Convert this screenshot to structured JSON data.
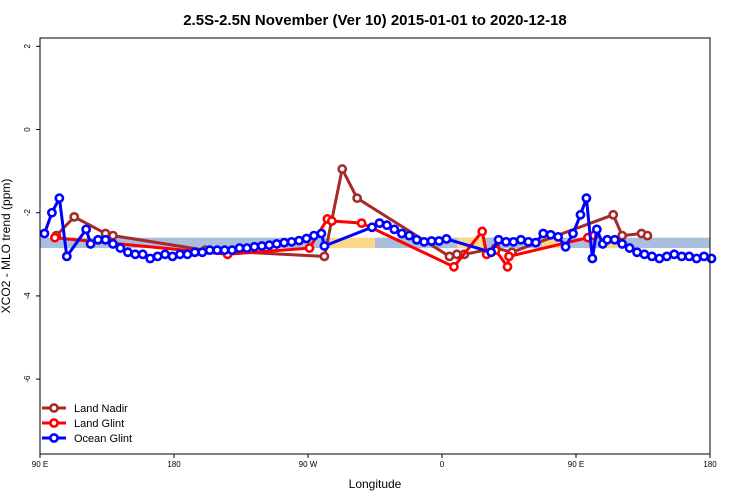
{
  "chart_data": {
    "type": "line",
    "title": "2.5S-2.5N November (Ver 10)   2015-01-01 to 2020-12-18",
    "xlabel": "Longitude",
    "ylabel": "XCO2 - MLO trend (ppm)",
    "xlim": [
      0,
      450
    ],
    "ylim": [
      -7.8,
      2.2
    ],
    "x_ticks": [
      {
        "value": 0,
        "label": "90 E"
      },
      {
        "value": 90,
        "label": "180"
      },
      {
        "value": 180,
        "label": "90 W"
      },
      {
        "value": 270,
        "label": "0"
      },
      {
        "value": 360,
        "label": "90 E"
      },
      {
        "value": 450,
        "label": "180"
      }
    ],
    "y_ticks": [
      {
        "value": 2,
        "label": "2"
      },
      {
        "value": 0,
        "label": "0"
      },
      {
        "value": -2,
        "label": "-2"
      },
      {
        "value": -4,
        "label": "-4"
      },
      {
        "value": -6,
        "label": "-6"
      }
    ],
    "legend_position": "bottom-left",
    "bands": [
      {
        "name": "ocean-band",
        "color": "#A9BFDD",
        "y_range": [
          -2.85,
          -2.6
        ],
        "segments": [
          [
            0,
            195
          ],
          [
            225,
            450
          ]
        ]
      },
      {
        "name": "land-band",
        "color": "#FCD98A",
        "y_range": [
          -2.85,
          -2.6
        ],
        "segments": [
          [
            195,
            225
          ],
          [
            280,
            298
          ],
          [
            337,
            350
          ],
          [
            380,
            392
          ]
        ]
      }
    ],
    "series": [
      {
        "name": "Land Nadir",
        "color": "#A52A2A",
        "points": [
          [
            11,
            -2.55
          ],
          [
            23,
            -2.1
          ],
          [
            44,
            -2.5
          ],
          [
            49,
            -2.55
          ],
          [
            111,
            -2.9
          ],
          [
            191,
            -3.05
          ],
          [
            203,
            -0.95
          ],
          [
            213,
            -1.65
          ],
          [
            275,
            -3.05
          ],
          [
            280,
            -3.0
          ],
          [
            285,
            -3.0
          ],
          [
            306,
            -2.85
          ],
          [
            317,
            -2.95
          ],
          [
            385,
            -2.05
          ],
          [
            391,
            -2.55
          ],
          [
            404,
            -2.5
          ],
          [
            408,
            -2.55
          ]
        ]
      },
      {
        "name": "Land Glint",
        "color": "#FF0000",
        "points": [
          [
            10,
            -2.6
          ],
          [
            126,
            -3.0
          ],
          [
            181,
            -2.85
          ],
          [
            193,
            -2.15
          ],
          [
            196,
            -2.2
          ],
          [
            216,
            -2.25
          ],
          [
            278,
            -3.3
          ],
          [
            297,
            -2.45
          ],
          [
            300,
            -3.0
          ],
          [
            306,
            -2.9
          ],
          [
            314,
            -3.3
          ],
          [
            315,
            -3.05
          ],
          [
            368,
            -2.6
          ],
          [
            372,
            -2.55
          ]
        ]
      },
      {
        "name": "Ocean Glint",
        "color": "#0000FF",
        "points": [
          [
            3,
            -2.5
          ],
          [
            8,
            -2.0
          ],
          [
            13,
            -1.65
          ],
          [
            18,
            -3.05
          ],
          [
            31,
            -2.4
          ],
          [
            34,
            -2.75
          ],
          [
            39,
            -2.65
          ],
          [
            44,
            -2.65
          ],
          [
            49,
            -2.75
          ],
          [
            54,
            -2.85
          ],
          [
            59,
            -2.95
          ],
          [
            64,
            -3.0
          ],
          [
            69,
            -3.0
          ],
          [
            74,
            -3.1
          ],
          [
            79,
            -3.05
          ],
          [
            84,
            -3.0
          ],
          [
            89,
            -3.05
          ],
          [
            94,
            -3.0
          ],
          [
            99,
            -3.0
          ],
          [
            104,
            -2.95
          ],
          [
            109,
            -2.95
          ],
          [
            114,
            -2.9
          ],
          [
            119,
            -2.9
          ],
          [
            124,
            -2.9
          ],
          [
            129,
            -2.9
          ],
          [
            134,
            -2.85
          ],
          [
            139,
            -2.85
          ],
          [
            144,
            -2.82
          ],
          [
            149,
            -2.8
          ],
          [
            154,
            -2.78
          ],
          [
            159,
            -2.75
          ],
          [
            164,
            -2.72
          ],
          [
            169,
            -2.7
          ],
          [
            174,
            -2.67
          ],
          [
            179,
            -2.62
          ],
          [
            184,
            -2.55
          ],
          [
            189,
            -2.5
          ],
          [
            191,
            -2.8
          ],
          [
            223,
            -2.35
          ],
          [
            228,
            -2.25
          ],
          [
            233,
            -2.3
          ],
          [
            238,
            -2.4
          ],
          [
            243,
            -2.5
          ],
          [
            248,
            -2.55
          ],
          [
            253,
            -2.65
          ],
          [
            258,
            -2.7
          ],
          [
            263,
            -2.68
          ],
          [
            268,
            -2.68
          ],
          [
            273,
            -2.63
          ],
          [
            303,
            -2.95
          ],
          [
            308,
            -2.65
          ],
          [
            313,
            -2.7
          ],
          [
            318,
            -2.7
          ],
          [
            323,
            -2.65
          ],
          [
            328,
            -2.7
          ],
          [
            333,
            -2.72
          ],
          [
            338,
            -2.5
          ],
          [
            343,
            -2.53
          ],
          [
            348,
            -2.58
          ],
          [
            353,
            -2.82
          ],
          [
            358,
            -2.5
          ],
          [
            363,
            -2.05
          ],
          [
            367,
            -1.65
          ],
          [
            371,
            -3.1
          ],
          [
            374,
            -2.4
          ],
          [
            378,
            -2.75
          ],
          [
            381,
            -2.65
          ],
          [
            386,
            -2.65
          ],
          [
            391,
            -2.75
          ],
          [
            396,
            -2.85
          ],
          [
            401,
            -2.95
          ],
          [
            406,
            -3.0
          ],
          [
            411,
            -3.05
          ],
          [
            416,
            -3.1
          ],
          [
            421,
            -3.05
          ],
          [
            426,
            -3.0
          ],
          [
            431,
            -3.05
          ],
          [
            436,
            -3.05
          ],
          [
            441,
            -3.1
          ],
          [
            446,
            -3.05
          ],
          [
            451,
            -3.1
          ]
        ]
      }
    ]
  }
}
